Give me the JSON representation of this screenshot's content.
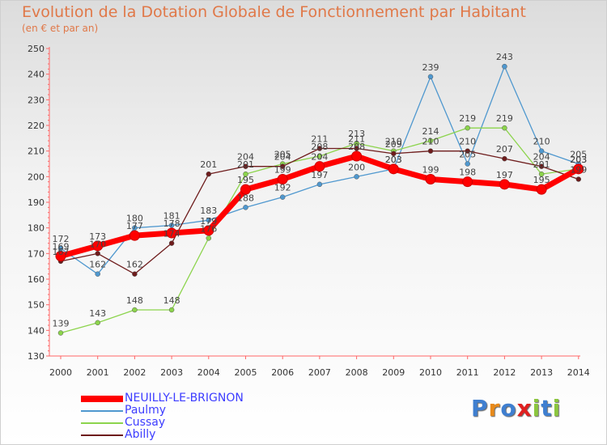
{
  "title": "Evolution de la Dotation Globale de Fonctionnement par Habitant",
  "subtitle": "(en € et par an)",
  "brand": "Proxiti",
  "chart_data": {
    "type": "line",
    "title": "Evolution de la Dotation Globale de Fonctionnement par Habitant",
    "subtitle": "(en € et par an)",
    "x": [
      2000,
      2001,
      2002,
      2003,
      2004,
      2005,
      2006,
      2007,
      2008,
      2009,
      2010,
      2011,
      2012,
      2013,
      2014
    ],
    "ylim": [
      130,
      250
    ],
    "yticks": [
      130,
      140,
      150,
      160,
      170,
      180,
      190,
      200,
      210,
      220,
      230,
      240,
      250
    ],
    "grid": "off",
    "legend": "bottom-left",
    "series": [
      {
        "name": "NEUILLY-LE-BRIGNON",
        "color": "#ff0000",
        "values": [
          169,
          173,
          177,
          178,
          179,
          195,
          199,
          204,
          208,
          203,
          199,
          198,
          197,
          195,
          203
        ]
      },
      {
        "name": "Paulmy",
        "color": "#4f98cf",
        "values": [
          172,
          162,
          180,
          181,
          183,
          188,
          192,
          197,
          200,
          203,
          239,
          205,
          243,
          210,
          205
        ]
      },
      {
        "name": "Cussay",
        "color": "#8cd44c",
        "values": [
          139,
          143,
          148,
          148,
          176,
          201,
          205,
          208,
          213,
          210,
          214,
          219,
          219,
          201,
          203
        ]
      },
      {
        "name": "Abilly",
        "color": "#6e1c1c",
        "values": [
          167,
          170,
          162,
          174,
          201,
          204,
          204,
          211,
          211,
          209,
          210,
          210,
          207,
          204,
          199
        ]
      }
    ]
  }
}
